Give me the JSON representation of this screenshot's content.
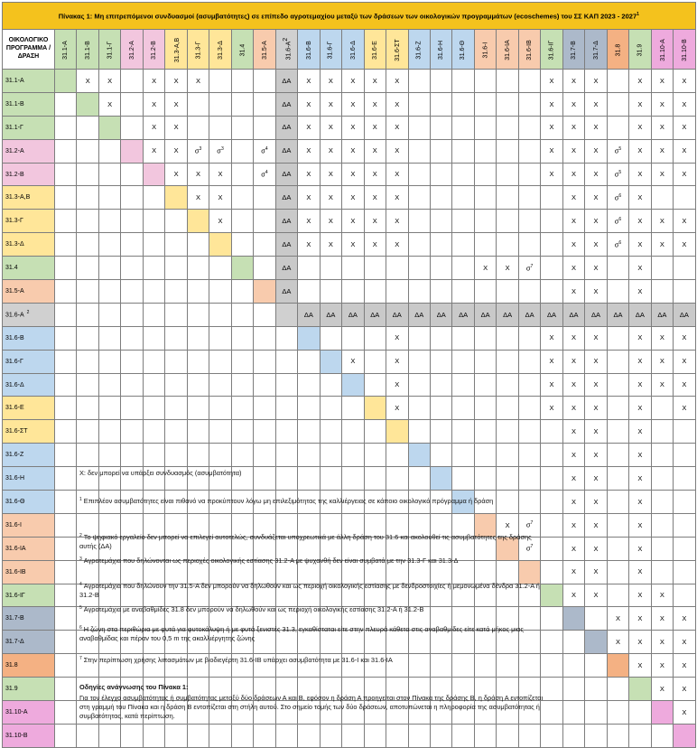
{
  "title": "Πίνακας 1:  Μη επιτρεπόμενοι συνδυασμοί (ασυμβατότητες) σε επίπεδο αγροτεμαχίου μεταξύ των δράσεων των οικολογικών προγραμμάτων (ecoschemes) του ΣΣ ΚΑΠ 2023 - 2027",
  "title_note": "1",
  "corner_label": "ΟΙΚΟΛΟΓΙΚΟ ΠΡΟΓΡΑΜΜΑ /ΔΡΑΣΗ",
  "columns": [
    {
      "label": "31.1-Α",
      "color": "gr"
    },
    {
      "label": "31.1-Β",
      "color": "gr"
    },
    {
      "label": "31.1-Γ",
      "color": "gr"
    },
    {
      "label": "31.2-Α",
      "color": "pk"
    },
    {
      "label": "31.2-Β",
      "color": "pk"
    },
    {
      "label": "31.3-Α,Β",
      "color": "ye"
    },
    {
      "label": "31.3-Γ",
      "color": "ye"
    },
    {
      "label": "31.3-Δ",
      "color": "ye"
    },
    {
      "label": "31.4",
      "color": "gr"
    },
    {
      "label": "31.5-Α",
      "color": "or"
    },
    {
      "label": "31.6-Α",
      "note": "2",
      "color": "gy"
    },
    {
      "label": "31.6-Β",
      "color": "bl"
    },
    {
      "label": "31.6-Γ",
      "color": "bl"
    },
    {
      "label": "31.6-Δ",
      "color": "bl"
    },
    {
      "label": "31.6-Ε",
      "color": "ye"
    },
    {
      "label": "31.6-ΣΤ",
      "color": "ye"
    },
    {
      "label": "31.6-Ζ",
      "color": "bl"
    },
    {
      "label": "31.6-Η",
      "color": "bl"
    },
    {
      "label": "31.6-Θ",
      "color": "bl"
    },
    {
      "label": "31.6-Ι",
      "color": "or"
    },
    {
      "label": "31.6-ΙΑ",
      "color": "or"
    },
    {
      "label": "31.6-ΙΒ",
      "color": "or"
    },
    {
      "label": "31.6-ΙΓ",
      "color": "gr"
    },
    {
      "label": "31.7-Β",
      "color": "pu"
    },
    {
      "label": "31.7-Δ",
      "color": "pu"
    },
    {
      "label": "31.8",
      "color": "dp"
    },
    {
      "label": "31.9",
      "color": "gr"
    },
    {
      "label": "31.10-Α",
      "color": "mg"
    },
    {
      "label": "31.10-Β",
      "color": "mg"
    }
  ],
  "rows": [
    {
      "label": "31.1-Α",
      "color": "gr",
      "cells": [
        "",
        "X",
        "X",
        "",
        "X",
        "X",
        "X",
        "",
        "",
        "",
        "ΔΑ",
        "X",
        "X",
        "X",
        "X",
        "X",
        "",
        "",
        "",
        "",
        "",
        "",
        "X",
        "X",
        "X",
        "",
        "X",
        "X",
        "X"
      ]
    },
    {
      "label": "31.1-Β",
      "color": "gr",
      "cells": [
        "",
        "",
        "X",
        "",
        "X",
        "X",
        "",
        "",
        "",
        "",
        "ΔΑ",
        "X",
        "X",
        "X",
        "X",
        "X",
        "",
        "",
        "",
        "",
        "",
        "",
        "X",
        "X",
        "X",
        "",
        "X",
        "X",
        "X"
      ]
    },
    {
      "label": "31.1-Γ",
      "color": "gr",
      "cells": [
        "",
        "",
        "",
        "",
        "X",
        "X",
        "",
        "",
        "",
        "",
        "ΔΑ",
        "X",
        "X",
        "X",
        "X",
        "X",
        "",
        "",
        "",
        "",
        "",
        "",
        "X",
        "X",
        "X",
        "",
        "X",
        "X",
        "X"
      ]
    },
    {
      "label": "31.2-Α",
      "color": "pk",
      "cells": [
        "",
        "",
        "",
        "",
        "X",
        "X",
        "σ3",
        "σ3",
        "",
        "σ4",
        "ΔΑ",
        "X",
        "X",
        "X",
        "X",
        "X",
        "",
        "",
        "",
        "",
        "",
        "",
        "X",
        "X",
        "X",
        "σ5",
        "X",
        "X",
        "X"
      ]
    },
    {
      "label": "31.2-Β",
      "color": "pk",
      "cells": [
        "",
        "",
        "",
        "",
        "",
        "X",
        "X",
        "X",
        "",
        "σ4",
        "ΔΑ",
        "X",
        "X",
        "X",
        "X",
        "X",
        "",
        "",
        "",
        "",
        "",
        "",
        "X",
        "X",
        "X",
        "σ5",
        "X",
        "X",
        "X"
      ]
    },
    {
      "label": "31.3-Α,Β",
      "color": "ye",
      "cells": [
        "",
        "",
        "",
        "",
        "",
        "",
        "X",
        "X",
        "",
        "",
        "ΔΑ",
        "X",
        "X",
        "X",
        "X",
        "X",
        "",
        "",
        "",
        "",
        "",
        "",
        "",
        "X",
        "X",
        "σ6",
        "X",
        "",
        ""
      ]
    },
    {
      "label": "31.3-Γ",
      "color": "ye",
      "cells": [
        "",
        "",
        "",
        "",
        "",
        "",
        "",
        "X",
        "",
        "",
        "ΔΑ",
        "X",
        "X",
        "X",
        "X",
        "X",
        "",
        "",
        "",
        "",
        "",
        "",
        "",
        "X",
        "X",
        "σ6",
        "X",
        "X",
        "X"
      ]
    },
    {
      "label": "31.3-Δ",
      "color": "ye",
      "cells": [
        "",
        "",
        "",
        "",
        "",
        "",
        "",
        "",
        "",
        "",
        "ΔΑ",
        "X",
        "X",
        "X",
        "X",
        "X",
        "",
        "",
        "",
        "",
        "",
        "",
        "",
        "X",
        "X",
        "σ6",
        "X",
        "X",
        "X"
      ]
    },
    {
      "label": "31.4",
      "color": "gr",
      "cells": [
        "",
        "",
        "",
        "",
        "",
        "",
        "",
        "",
        "",
        "",
        "ΔΑ",
        "",
        "",
        "",
        "",
        "",
        "",
        "",
        "",
        "X",
        "X",
        "σ7",
        "",
        "X",
        "X",
        "",
        "X",
        "",
        ""
      ]
    },
    {
      "label": "31.5-Α",
      "color": "or",
      "cells": [
        "",
        "",
        "",
        "",
        "",
        "",
        "",
        "",
        "",
        "",
        "ΔΑ",
        "",
        "",
        "",
        "",
        "",
        "",
        "",
        "",
        "",
        "",
        "",
        "",
        "X",
        "X",
        "",
        "X",
        "",
        ""
      ]
    },
    {
      "label": "31.6-Α",
      "note": "2",
      "color": "gy",
      "cells": [
        "",
        "",
        "",
        "",
        "",
        "",
        "",
        "",
        "",
        "",
        "",
        "ΔΑ",
        "ΔΑ",
        "ΔΑ",
        "ΔΑ",
        "ΔΑ",
        "ΔΑ",
        "ΔΑ",
        "ΔΑ",
        "ΔΑ",
        "ΔΑ",
        "ΔΑ",
        "ΔΑ",
        "ΔΑ",
        "ΔΑ",
        "ΔΑ",
        "ΔΑ",
        "ΔΑ",
        "ΔΑ"
      ]
    },
    {
      "label": "31.6-Β",
      "color": "bl",
      "cells": [
        "",
        "",
        "",
        "",
        "",
        "",
        "",
        "",
        "",
        "",
        "",
        "",
        "",
        "",
        "",
        "X",
        "",
        "",
        "",
        "",
        "",
        "",
        "X",
        "X",
        "X",
        "",
        "X",
        "X",
        "X"
      ]
    },
    {
      "label": "31.6-Γ",
      "color": "bl",
      "cells": [
        "",
        "",
        "",
        "",
        "",
        "",
        "",
        "",
        "",
        "",
        "",
        "",
        "",
        "X",
        "",
        "X",
        "",
        "",
        "",
        "",
        "",
        "",
        "X",
        "X",
        "X",
        "",
        "X",
        "X",
        "X"
      ]
    },
    {
      "label": "31.6-Δ",
      "color": "bl",
      "cells": [
        "",
        "",
        "",
        "",
        "",
        "",
        "",
        "",
        "",
        "",
        "",
        "",
        "",
        "",
        "",
        "X",
        "",
        "",
        "",
        "",
        "",
        "",
        "X",
        "X",
        "X",
        "",
        "X",
        "X",
        "X"
      ]
    },
    {
      "label": "31.6-Ε",
      "color": "ye",
      "cells": [
        "",
        "",
        "",
        "",
        "",
        "",
        "",
        "",
        "",
        "",
        "",
        "",
        "",
        "",
        "",
        "X",
        "",
        "",
        "",
        "",
        "",
        "",
        "X",
        "X",
        "X",
        "",
        "X",
        "",
        "X"
      ]
    },
    {
      "label": "31.6-ΣΤ",
      "color": "ye",
      "cells": [
        "",
        "",
        "",
        "",
        "",
        "",
        "",
        "",
        "",
        "",
        "",
        "",
        "",
        "",
        "",
        "",
        "",
        "",
        "",
        "",
        "",
        "",
        "",
        "X",
        "X",
        "",
        "X",
        "",
        ""
      ]
    },
    {
      "label": "31.6-Ζ",
      "color": "bl",
      "cells": [
        "",
        "",
        "",
        "",
        "",
        "",
        "",
        "",
        "",
        "",
        "",
        "",
        "",
        "",
        "",
        "",
        "",
        "",
        "",
        "",
        "",
        "",
        "",
        "X",
        "X",
        "",
        "X",
        "",
        ""
      ]
    },
    {
      "label": "31.6-Η",
      "color": "bl",
      "cells": [
        "",
        "",
        "",
        "",
        "",
        "",
        "",
        "",
        "",
        "",
        "",
        "",
        "",
        "",
        "",
        "",
        "",
        "",
        "",
        "",
        "",
        "",
        "",
        "X",
        "X",
        "",
        "X",
        "",
        ""
      ]
    },
    {
      "label": "31.6-Θ",
      "color": "bl",
      "cells": [
        "",
        "",
        "",
        "",
        "",
        "",
        "",
        "",
        "",
        "",
        "",
        "",
        "",
        "",
        "",
        "",
        "",
        "",
        "",
        "",
        "",
        "",
        "",
        "X",
        "X",
        "",
        "X",
        "",
        ""
      ]
    },
    {
      "label": "31.6-Ι",
      "color": "or",
      "cells": [
        "",
        "",
        "",
        "",
        "",
        "",
        "",
        "",
        "",
        "",
        "",
        "",
        "",
        "",
        "",
        "",
        "",
        "",
        "",
        "",
        "X",
        "σ7",
        "",
        "X",
        "X",
        "",
        "X",
        "",
        ""
      ]
    },
    {
      "label": "31.6-ΙΑ",
      "color": "or",
      "cells": [
        "",
        "",
        "",
        "",
        "",
        "",
        "",
        "",
        "",
        "",
        "",
        "",
        "",
        "",
        "",
        "",
        "",
        "",
        "",
        "",
        "",
        "σ7",
        "",
        "X",
        "X",
        "",
        "X",
        "",
        ""
      ]
    },
    {
      "label": "31.6-ΙΒ",
      "color": "or",
      "cells": [
        "",
        "",
        "",
        "",
        "",
        "",
        "",
        "",
        "",
        "",
        "",
        "",
        "",
        "",
        "",
        "",
        "",
        "",
        "",
        "",
        "",
        "",
        "",
        "X",
        "X",
        "",
        "X",
        "",
        ""
      ]
    },
    {
      "label": "31.6-ΙΓ",
      "color": "gr",
      "cells": [
        "",
        "",
        "",
        "",
        "",
        "",
        "",
        "",
        "",
        "",
        "",
        "",
        "",
        "",
        "",
        "",
        "",
        "",
        "",
        "",
        "",
        "",
        "",
        "X",
        "X",
        "",
        "X",
        "X",
        ""
      ]
    },
    {
      "label": "31.7-Β",
      "color": "pu",
      "cells": [
        "",
        "",
        "",
        "",
        "",
        "",
        "",
        "",
        "",
        "",
        "",
        "",
        "",
        "",
        "",
        "",
        "",
        "",
        "",
        "",
        "",
        "",
        "",
        "",
        "",
        "X",
        "X",
        "X",
        "X"
      ]
    },
    {
      "label": "31.7-Δ",
      "color": "pu",
      "cells": [
        "",
        "",
        "",
        "",
        "",
        "",
        "",
        "",
        "",
        "",
        "",
        "",
        "",
        "",
        "",
        "",
        "",
        "",
        "",
        "",
        "",
        "",
        "",
        "",
        "",
        "X",
        "X",
        "X",
        "X"
      ]
    },
    {
      "label": "31.8",
      "color": "dp",
      "cells": [
        "",
        "",
        "",
        "",
        "",
        "",
        "",
        "",
        "",
        "",
        "",
        "",
        "",
        "",
        "",
        "",
        "",
        "",
        "",
        "",
        "",
        "",
        "",
        "",
        "",
        "",
        "X",
        "X",
        "X"
      ]
    },
    {
      "label": "31.9",
      "color": "gr",
      "cells": [
        "",
        "",
        "",
        "",
        "",
        "",
        "",
        "",
        "",
        "",
        "",
        "",
        "",
        "",
        "",
        "",
        "",
        "",
        "",
        "",
        "",
        "",
        "",
        "",
        "",
        "",
        "",
        "X",
        "X"
      ]
    },
    {
      "label": "31.10-Α",
      "color": "mg",
      "cells": [
        "",
        "",
        "",
        "",
        "",
        "",
        "",
        "",
        "",
        "",
        "",
        "",
        "",
        "",
        "",
        "",
        "",
        "",
        "",
        "",
        "",
        "",
        "",
        "",
        "",
        "",
        "",
        "",
        "X"
      ]
    },
    {
      "label": "31.10-Β",
      "color": "mg",
      "cells": [
        "",
        "",
        "",
        "",
        "",
        "",
        "",
        "",
        "",
        "",
        "",
        "",
        "",
        "",
        "",
        "",
        "",
        "",
        "",
        "",
        "",
        "",
        "",
        "",
        "",
        "",
        "",
        "",
        ""
      ]
    }
  ],
  "legend": {
    "x_text": "X: δεν μπορεί να υπάρξει συνδυασμός (ασυμβατότητα)",
    "notes": [
      {
        "n": "1",
        "text": "Επιπλέον ασυμβατότητες είναι πιθανό να προκύπτουν λόγω μη επιλεξιμότητας της καλλιέργειας σε κάποιο οικολογικό πρόγραμμα ή δράση"
      },
      {
        "n": "2",
        "text": "Το ψηφιακό εργαλείο δεν μπορεί να επιλεγεί αυτοτελώς, συνδυάζεται υποχρεωτικά με άλλη δράση του 31.6 και ακολουθεί τις ασυμβατότητες της δράσης αυτής (ΔΑ)"
      },
      {
        "n": "3",
        "text": "Αγροτεμάχια που δηλώνονται ως περιοχές οικολογικής εστίασης 31.2-Α με ψυχανθή δεν είναι συμβατά με την 31.3-Γ και 31.3-Δ"
      },
      {
        "n": "4",
        "text": "Αγροτεμάχια που δηλώνουν την 31.5-Α δεν μπορούν να δηλωθούν και ως περιοχή οικολογικής εστίασης με δενδροστοιχίες ή μεμονωμένα δένδρα 31.2-Α ή 31.2-Β"
      },
      {
        "n": "5",
        "text": "Αγροτεμάχια  με αναβαθμίδες 31.8 δεν μπορούν να δηλωθούν και ως περιοχή οικολογικής εστίασης 31.2-Α ή 31.2-Β"
      },
      {
        "n": "6",
        "text": "Η ζώνη στα περιθώρια με φυτά για φυτοκάλυψη ή με φυτά ξενιστές 31.3, εγκαθίσταται είτε στην πλευρά κάθετα στις αναβαθμίδες είτε κατά μήκος μιας αναβαθμίδας και πέραν του 0,5 m της ακαλλιέργητης ζώνης"
      },
      {
        "n": "7",
        "text": "Στην περίπτωση χρήσης λιπασμάτων με βιοδιεγέρτη 31.6-ΙΒ υπάρχει ασυμβατότητα με 31.6-Ι και 31.6-ΙΑ"
      }
    ],
    "instructions_title": "Οδηγίες ανάγνωσης του Πίνακα 1:",
    "instructions_text": "Για τον έλεγχο ασυμβατότητας ή συμβατότητας μεταξύ δύο δράσεων Α και Β, εφόσον η δράση Α προηγείται στον Πίνακα της δράσης  Β, η δράση Α εντοπίζεται στη γραμμή του Πίνακα και η δράση Β εντοπίζεται στη στήλη αυτού.  Στο σημείο τομής των δύο δράσεων, αποτυπώνεται η πληροφορία της ασυμβατότητας ή συμβατότητας, κατά περίπτωση."
  }
}
